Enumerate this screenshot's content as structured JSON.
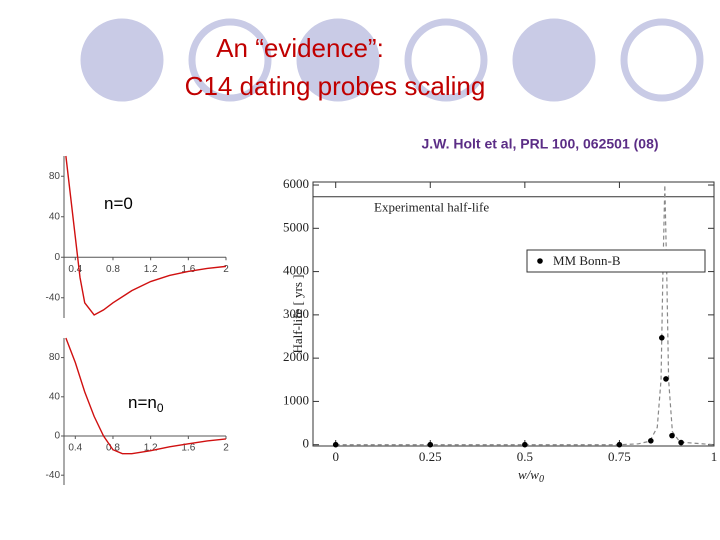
{
  "title": [
    "An “evidence”:",
    "C14 dating probes scaling"
  ],
  "citation": "J.W. Holt et al, PRL 100, 062501 (08)",
  "chart_data": [
    {
      "type": "line",
      "annotation": "n=0",
      "color": "#d01010",
      "xlim": [
        0.28,
        2.0
      ],
      "ylim": [
        -60,
        100
      ],
      "xticks": [
        0.4,
        0.8,
        1.2,
        1.6,
        2
      ],
      "yticks": [
        80,
        40,
        0,
        -40
      ],
      "series": [
        {
          "x": [
            0.3,
            0.35,
            0.4,
            0.45,
            0.5,
            0.6,
            0.7,
            0.8,
            1.0,
            1.2,
            1.4,
            1.6,
            1.8,
            2.0
          ],
          "values": [
            100,
            60,
            20,
            -20,
            -45,
            -57,
            -52,
            -45,
            -33,
            -24,
            -18,
            -14,
            -11,
            -9
          ]
        }
      ]
    },
    {
      "type": "line",
      "annotation": "n=n",
      "annotation_subscript": "0",
      "color": "#d01010",
      "xlim": [
        0.28,
        2.0
      ],
      "ylim": [
        -50,
        100
      ],
      "xticks": [
        0.4,
        0.8,
        1.2,
        1.6,
        2
      ],
      "yticks": [
        80,
        40,
        0,
        -40
      ],
      "series": [
        {
          "x": [
            0.3,
            0.4,
            0.5,
            0.6,
            0.7,
            0.8,
            0.9,
            1.0,
            1.2,
            1.4,
            1.6,
            1.8,
            2.0
          ],
          "values": [
            100,
            75,
            45,
            20,
            0,
            -14,
            -18,
            -18,
            -15,
            -11,
            -8,
            -5,
            -3
          ]
        }
      ]
    },
    {
      "type": "scatter",
      "y_label": "Half-life [ yrs ]",
      "x_label": "w/w",
      "x_label_subscript": "0",
      "xlim": [
        -0.06,
        1.0
      ],
      "ylim": [
        -30,
        6070
      ],
      "xticks": [
        0,
        0.25,
        0.5,
        0.75,
        1
      ],
      "yticks": [
        0,
        1000,
        2000,
        3000,
        4000,
        5000,
        6000
      ],
      "reference_line": {
        "value": 5730,
        "label": "Experimental half-life"
      },
      "series": [
        {
          "x": [
            0,
            0.75,
            0.8,
            0.83,
            0.85,
            0.86,
            0.865,
            0.87,
            0.875,
            0.88,
            0.89,
            0.91,
            1.0
          ],
          "values": [
            0,
            0,
            20,
            80,
            400,
            1500,
            4000,
            6000,
            4000,
            1500,
            300,
            60,
            0
          ],
          "color": "#888888",
          "style": "dashed"
        },
        {
          "name": "MM Bonn-B",
          "x": [
            0,
            0.25,
            0.5,
            0.75,
            0.833,
            0.862,
            0.873,
            0.889,
            0.913
          ],
          "values": [
            0,
            0,
            0,
            0,
            90,
            2470,
            1520,
            210,
            50
          ],
          "color": "#000000",
          "style": "points"
        }
      ]
    }
  ]
}
